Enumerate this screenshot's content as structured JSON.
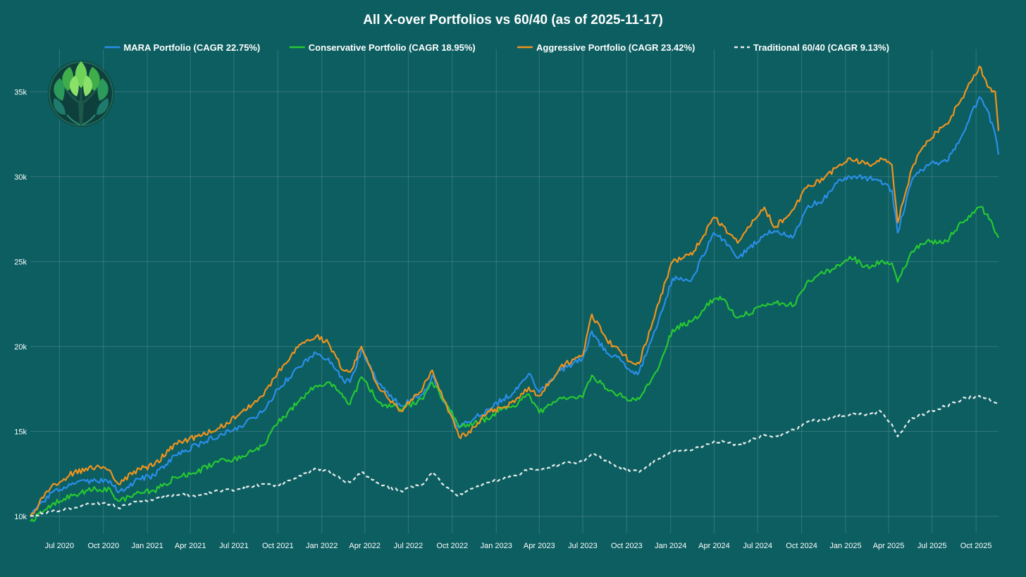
{
  "chart_data": {
    "type": "line",
    "title": "All X-over Portfolios vs 60/40  (as of 2025-11-17)",
    "xlabel": "",
    "ylabel": "",
    "x_range": [
      "2020-05-01",
      "2025-11-17"
    ],
    "y_range": [
      9000,
      37500
    ],
    "grid": true,
    "legend_position": "top-center",
    "x_ticks": [
      {
        "date": "2020-07-01",
        "label": "Jul 2020"
      },
      {
        "date": "2020-10-01",
        "label": "Oct 2020"
      },
      {
        "date": "2021-01-01",
        "label": "Jan 2021"
      },
      {
        "date": "2021-04-01",
        "label": "Apr 2021"
      },
      {
        "date": "2021-07-01",
        "label": "Jul 2021"
      },
      {
        "date": "2021-10-01",
        "label": "Oct 2021"
      },
      {
        "date": "2022-01-01",
        "label": "Jan 2022"
      },
      {
        "date": "2022-04-01",
        "label": "Apr 2022"
      },
      {
        "date": "2022-07-01",
        "label": "Jul 2022"
      },
      {
        "date": "2022-10-01",
        "label": "Oct 2022"
      },
      {
        "date": "2023-01-01",
        "label": "Jan 2023"
      },
      {
        "date": "2023-04-01",
        "label": "Apr 2023"
      },
      {
        "date": "2023-07-01",
        "label": "Jul 2023"
      },
      {
        "date": "2023-10-01",
        "label": "Oct 2023"
      },
      {
        "date": "2024-01-01",
        "label": "Jan 2024"
      },
      {
        "date": "2024-04-01",
        "label": "Apr 2024"
      },
      {
        "date": "2024-07-01",
        "label": "Jul 2024"
      },
      {
        "date": "2024-10-01",
        "label": "Oct 2024"
      },
      {
        "date": "2025-01-01",
        "label": "Jan 2025"
      },
      {
        "date": "2025-04-01",
        "label": "Apr 2025"
      },
      {
        "date": "2025-07-01",
        "label": "Jul 2025"
      },
      {
        "date": "2025-10-01",
        "label": "Oct 2025"
      }
    ],
    "y_ticks": [
      {
        "value": 10000,
        "label": "10k"
      },
      {
        "value": 15000,
        "label": "15k"
      },
      {
        "value": 20000,
        "label": "20k"
      },
      {
        "value": 25000,
        "label": "25k"
      },
      {
        "value": 30000,
        "label": "30k"
      },
      {
        "value": 35000,
        "label": "35k"
      }
    ],
    "series": [
      {
        "name": "MARA Portfolio",
        "legend_label": "MARA Portfolio  (CAGR 22.75%)",
        "color": "#2b8ee8",
        "dash": "solid",
        "x": [
          "2020-05-01",
          "2020-06-15",
          "2020-08-01",
          "2020-09-15",
          "2020-10-15",
          "2020-11-01",
          "2020-12-15",
          "2021-01-15",
          "2021-03-01",
          "2021-04-15",
          "2021-06-01",
          "2021-07-15",
          "2021-09-01",
          "2021-10-01",
          "2021-11-15",
          "2021-12-20",
          "2022-01-15",
          "2022-02-15",
          "2022-03-01",
          "2022-03-25",
          "2022-05-01",
          "2022-06-15",
          "2022-08-01",
          "2022-08-20",
          "2022-09-15",
          "2022-10-15",
          "2022-11-01",
          "2022-12-15",
          "2023-01-15",
          "2023-02-15",
          "2023-03-10",
          "2023-04-01",
          "2023-05-15",
          "2023-07-01",
          "2023-07-20",
          "2023-08-20",
          "2023-09-15",
          "2023-10-10",
          "2023-10-27",
          "2023-12-01",
          "2024-01-05",
          "2024-02-15",
          "2024-03-31",
          "2024-04-20",
          "2024-05-20",
          "2024-07-15",
          "2024-08-05",
          "2024-09-15",
          "2024-10-15",
          "2024-11-15",
          "2024-12-10",
          "2025-01-10",
          "2025-02-19",
          "2025-03-15",
          "2025-04-08",
          "2025-04-20",
          "2025-05-20",
          "2025-06-20",
          "2025-07-31",
          "2025-09-01",
          "2025-10-08",
          "2025-10-25",
          "2025-11-10",
          "2025-11-17"
        ],
        "values": [
          10000,
          11400,
          11900,
          12100,
          12100,
          11400,
          12200,
          12400,
          13600,
          14200,
          14800,
          15300,
          16200,
          17500,
          18800,
          19600,
          19300,
          18000,
          17900,
          19800,
          17800,
          16500,
          17200,
          18300,
          16700,
          15200,
          15500,
          16300,
          16900,
          17500,
          18400,
          17300,
          18600,
          19300,
          20900,
          19600,
          19400,
          18500,
          18500,
          21000,
          24000,
          24000,
          26700,
          26300,
          25200,
          26600,
          26800,
          26500,
          28300,
          28600,
          29600,
          30000,
          29900,
          29800,
          29200,
          26700,
          29800,
          30700,
          30900,
          32400,
          34700,
          33900,
          32500,
          31300
        ]
      },
      {
        "name": "Conservative Portfolio",
        "legend_label": "Conservative Portfolio  (CAGR 18.95%)",
        "color": "#27c832",
        "dash": "solid",
        "x": [
          "2020-05-01",
          "2020-06-15",
          "2020-08-01",
          "2020-09-15",
          "2020-10-15",
          "2020-11-01",
          "2020-12-15",
          "2021-01-15",
          "2021-03-01",
          "2021-04-15",
          "2021-06-01",
          "2021-07-15",
          "2021-09-01",
          "2021-10-01",
          "2021-11-15",
          "2021-12-20",
          "2022-01-15",
          "2022-02-15",
          "2022-03-01",
          "2022-03-25",
          "2022-05-01",
          "2022-06-15",
          "2022-08-01",
          "2022-08-20",
          "2022-09-15",
          "2022-10-15",
          "2022-11-01",
          "2022-12-15",
          "2023-01-15",
          "2023-02-15",
          "2023-03-10",
          "2023-04-01",
          "2023-05-15",
          "2023-07-01",
          "2023-07-20",
          "2023-08-20",
          "2023-09-15",
          "2023-10-10",
          "2023-10-27",
          "2023-12-01",
          "2024-01-05",
          "2024-02-15",
          "2024-03-31",
          "2024-04-20",
          "2024-05-20",
          "2024-07-15",
          "2024-08-05",
          "2024-09-15",
          "2024-10-15",
          "2024-11-15",
          "2024-12-10",
          "2025-01-10",
          "2025-02-19",
          "2025-03-15",
          "2025-04-08",
          "2025-04-20",
          "2025-05-20",
          "2025-06-20",
          "2025-07-31",
          "2025-09-01",
          "2025-10-08",
          "2025-10-25",
          "2025-11-10",
          "2025-11-17"
        ],
        "values": [
          9700,
          10700,
          11300,
          11600,
          11600,
          10900,
          11400,
          11500,
          12300,
          12600,
          13300,
          13400,
          14200,
          15500,
          16800,
          17700,
          17900,
          17000,
          16600,
          18200,
          16700,
          16300,
          16900,
          17900,
          16800,
          15300,
          15400,
          15700,
          16400,
          16600,
          17200,
          16100,
          17000,
          17000,
          18300,
          17500,
          17200,
          16800,
          16900,
          18500,
          21000,
          21500,
          22800,
          22800,
          21700,
          22400,
          22600,
          22400,
          23900,
          24300,
          24600,
          25300,
          24600,
          25000,
          24900,
          23800,
          25600,
          26200,
          26200,
          27300,
          28200,
          27800,
          26700,
          26400
        ]
      },
      {
        "name": "Aggressive Portfolio",
        "legend_label": "Aggressive Portfolio  (CAGR 23.42%)",
        "color": "#f0931e",
        "dash": "solid",
        "x": [
          "2020-05-01",
          "2020-06-15",
          "2020-08-01",
          "2020-09-15",
          "2020-10-15",
          "2020-11-01",
          "2020-12-15",
          "2021-01-15",
          "2021-03-01",
          "2021-04-15",
          "2021-06-01",
          "2021-07-15",
          "2021-09-01",
          "2021-10-01",
          "2021-11-15",
          "2021-12-20",
          "2022-01-15",
          "2022-02-15",
          "2022-03-01",
          "2022-03-25",
          "2022-05-01",
          "2022-06-15",
          "2022-08-01",
          "2022-08-20",
          "2022-09-15",
          "2022-10-15",
          "2022-11-01",
          "2022-12-15",
          "2023-01-15",
          "2023-02-15",
          "2023-03-10",
          "2023-04-01",
          "2023-05-15",
          "2023-07-01",
          "2023-07-20",
          "2023-08-20",
          "2023-09-15",
          "2023-10-10",
          "2023-10-27",
          "2023-12-01",
          "2024-01-05",
          "2024-02-15",
          "2024-03-31",
          "2024-04-20",
          "2024-05-20",
          "2024-07-15",
          "2024-08-05",
          "2024-09-15",
          "2024-10-15",
          "2024-11-15",
          "2024-12-10",
          "2025-01-10",
          "2025-02-19",
          "2025-03-15",
          "2025-04-08",
          "2025-04-20",
          "2025-05-20",
          "2025-06-20",
          "2025-07-31",
          "2025-09-01",
          "2025-10-08",
          "2025-10-25",
          "2025-11-10",
          "2025-11-17"
        ],
        "values": [
          10000,
          11800,
          12600,
          12900,
          12700,
          11900,
          12800,
          13000,
          14300,
          14700,
          15200,
          16100,
          17100,
          18500,
          20100,
          20600,
          20200,
          18600,
          18500,
          20000,
          17500,
          16200,
          17600,
          18600,
          16800,
          14700,
          14800,
          16200,
          16400,
          17000,
          17600,
          17100,
          18800,
          19500,
          21900,
          20400,
          19800,
          19100,
          19000,
          22100,
          25000,
          25400,
          27600,
          27100,
          26100,
          28200,
          27000,
          28100,
          29500,
          29800,
          30500,
          31100,
          30700,
          31100,
          30700,
          27300,
          30500,
          32100,
          33100,
          34600,
          36500,
          35300,
          35000,
          32700
        ]
      },
      {
        "name": "Traditional 60/40",
        "legend_label": "Traditional 60/40  (CAGR 9.13%)",
        "color": "#e8ecec",
        "dash": "dashed",
        "x": [
          "2020-05-01",
          "2020-06-15",
          "2020-08-01",
          "2020-09-15",
          "2020-10-15",
          "2020-11-01",
          "2020-12-15",
          "2021-01-15",
          "2021-03-01",
          "2021-04-15",
          "2021-06-01",
          "2021-07-15",
          "2021-09-01",
          "2021-10-01",
          "2021-11-15",
          "2021-12-20",
          "2022-01-15",
          "2022-02-15",
          "2022-03-01",
          "2022-03-25",
          "2022-05-01",
          "2022-06-15",
          "2022-08-01",
          "2022-08-20",
          "2022-09-15",
          "2022-10-15",
          "2022-11-01",
          "2022-12-15",
          "2023-01-15",
          "2023-02-15",
          "2023-03-10",
          "2023-04-01",
          "2023-05-15",
          "2023-07-01",
          "2023-07-20",
          "2023-08-20",
          "2023-09-15",
          "2023-10-10",
          "2023-10-27",
          "2023-12-01",
          "2024-01-05",
          "2024-02-15",
          "2024-03-31",
          "2024-04-20",
          "2024-05-20",
          "2024-07-15",
          "2024-08-05",
          "2024-09-15",
          "2024-10-15",
          "2024-11-15",
          "2024-12-10",
          "2025-01-10",
          "2025-02-19",
          "2025-03-15",
          "2025-04-08",
          "2025-04-20",
          "2025-05-20",
          "2025-06-20",
          "2025-07-31",
          "2025-09-01",
          "2025-10-08",
          "2025-10-25",
          "2025-11-10",
          "2025-11-17"
        ],
        "values": [
          10000,
          10300,
          10500,
          10800,
          10700,
          10500,
          10900,
          11000,
          11300,
          11200,
          11500,
          11600,
          11900,
          11800,
          12400,
          12800,
          12700,
          12100,
          12000,
          12600,
          11900,
          11500,
          11900,
          12600,
          11800,
          11200,
          11500,
          12000,
          12200,
          12400,
          12800,
          12700,
          13100,
          13200,
          13700,
          13300,
          12900,
          12700,
          12600,
          13300,
          13800,
          13900,
          14400,
          14400,
          14200,
          14800,
          14700,
          15100,
          15600,
          15700,
          15900,
          16000,
          16000,
          16200,
          15400,
          14700,
          15800,
          16100,
          16500,
          16900,
          17100,
          16900,
          16700,
          16600
        ]
      }
    ]
  }
}
